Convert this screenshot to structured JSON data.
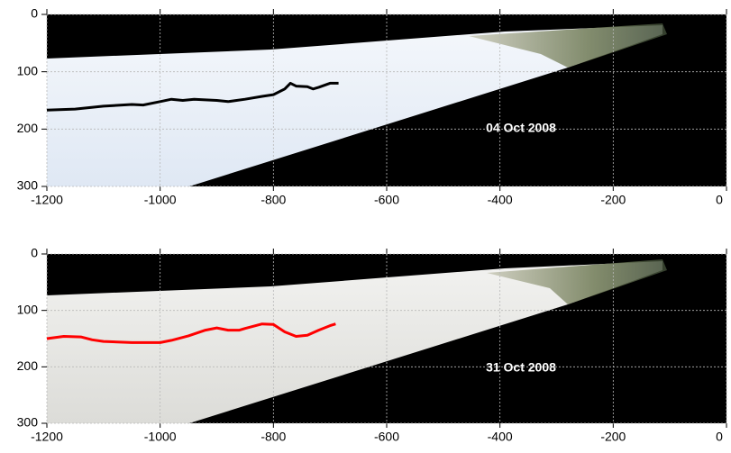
{
  "chart_data": [
    {
      "type": "line",
      "annotation": "04 Oct 2008",
      "color": "#000000",
      "x": [
        -1200,
        -1150,
        -1100,
        -1050,
        -1030,
        -1000,
        -980,
        -960,
        -940,
        -900,
        -880,
        -850,
        -820,
        -800,
        -780,
        -770,
        -760,
        -740,
        -730,
        -720,
        -700,
        -685
      ],
      "values": [
        167,
        165,
        160,
        157,
        158,
        152,
        148,
        150,
        148,
        150,
        152,
        148,
        143,
        140,
        130,
        120,
        125,
        126,
        130,
        127,
        120,
        120
      ],
      "xlim": [
        -1200,
        0
      ],
      "ylim": [
        0,
        300
      ],
      "y_inverted": true,
      "xticks": [
        -1200,
        -1000,
        -800,
        -600,
        -400,
        -200,
        0
      ],
      "yticks": [
        0,
        100,
        200,
        300
      ],
      "grid": true
    },
    {
      "type": "line",
      "annotation": "31 Oct 2008",
      "color": "#ff0000",
      "x": [
        -1200,
        -1170,
        -1140,
        -1120,
        -1100,
        -1050,
        -1000,
        -980,
        -950,
        -920,
        -900,
        -880,
        -860,
        -850,
        -820,
        -800,
        -780,
        -760,
        -740,
        -720,
        -700,
        -690
      ],
      "values": [
        150,
        146,
        147,
        152,
        155,
        157,
        157,
        153,
        145,
        135,
        131,
        135,
        135,
        132,
        124,
        125,
        138,
        146,
        144,
        135,
        127,
        124
      ],
      "xlim": [
        -1200,
        0
      ],
      "ylim": [
        0,
        300
      ],
      "y_inverted": true,
      "xticks": [
        -1200,
        -1000,
        -800,
        -600,
        -400,
        -200,
        0
      ],
      "yticks": [
        0,
        100,
        200,
        300
      ],
      "grid": true
    }
  ]
}
